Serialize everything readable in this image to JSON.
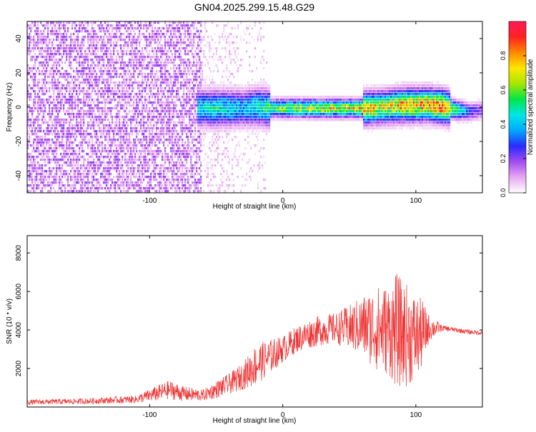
{
  "title": "GN04.2025.299.15.48.G29",
  "colors": {
    "snr_line": "#ee3333",
    "axis": "#000000"
  },
  "chart_data": [
    {
      "type": "heatmap",
      "title": "GN04.2025.299.15.48.G29",
      "xlabel": "Height of straight line (km)",
      "ylabel": "Frequency (Hz)",
      "xlim": [
        -192,
        150
      ],
      "ylim": [
        -50,
        50
      ],
      "xticks": [
        "-100",
        "0",
        "100"
      ],
      "yticks": [
        "-40",
        "-20",
        "0",
        "20",
        "40"
      ],
      "colorbar": {
        "label": "Normalized spectral amplitude",
        "range": [
          0,
          1
        ],
        "ticks": [
          "0.0",
          "0.2",
          "0.4",
          "0.6",
          "0.8"
        ],
        "colors": [
          "#ffffff",
          "#e6a8f2",
          "#a24cf0",
          "#2a2aff",
          "#00aaff",
          "#00e6e6",
          "#00e64a",
          "#a6e600",
          "#ffe600",
          "#ff8800",
          "#ff2222",
          "#ff1a55"
        ]
      },
      "ridge": {
        "description_free_x": [
          -65,
          -50,
          -40,
          -30,
          -20,
          -10,
          0,
          20,
          40,
          60,
          80,
          90,
          100,
          110,
          120,
          130,
          140,
          150
        ],
        "center_hz": [
          0,
          0,
          0,
          0,
          1,
          0,
          0,
          0,
          0,
          0,
          1,
          2,
          2,
          2,
          1,
          -1,
          -2,
          -1
        ],
        "peak_amplitude": [
          0.45,
          0.5,
          0.45,
          0.4,
          0.5,
          0.55,
          0.65,
          0.7,
          0.72,
          0.75,
          0.72,
          0.85,
          0.8,
          0.85,
          0.9,
          0.6,
          0.3,
          0.2
        ]
      }
    },
    {
      "type": "line",
      "xlabel": "Height of straight line (km)",
      "ylabel": "SNR (10 * v/v)",
      "xlim": [
        -192,
        150
      ],
      "ylim": [
        0,
        8900
      ],
      "xticks": [
        "-100",
        "0",
        "100"
      ],
      "yticks": [
        "2000",
        "4000",
        "6000",
        "8000"
      ],
      "series": [
        {
          "x": [
            -192,
            -150,
            -110,
            -95,
            -85,
            -75,
            -60,
            -50,
            -40,
            -30,
            -20,
            -10,
            0,
            10,
            20,
            30,
            40,
            50,
            60,
            70,
            80,
            85,
            90,
            95,
            100,
            105,
            110,
            120,
            130,
            140,
            150
          ],
          "mean": [
            250,
            300,
            400,
            700,
            900,
            700,
            600,
            900,
            1200,
            1600,
            2200,
            2600,
            3000,
            3500,
            3800,
            4000,
            4100,
            4100,
            4200,
            4100,
            4000,
            4000,
            3800,
            3700,
            3600,
            3800,
            4100,
            4100,
            4000,
            3900,
            3850
          ],
          "noise": [
            130,
            150,
            200,
            400,
            500,
            400,
            300,
            450,
            550,
            700,
            1100,
            900,
            700,
            700,
            750,
            800,
            800,
            1200,
            1600,
            2200,
            2400,
            3000,
            2800,
            2600,
            2200,
            1800,
            700,
            150,
            130,
            120,
            120
          ]
        }
      ]
    }
  ]
}
